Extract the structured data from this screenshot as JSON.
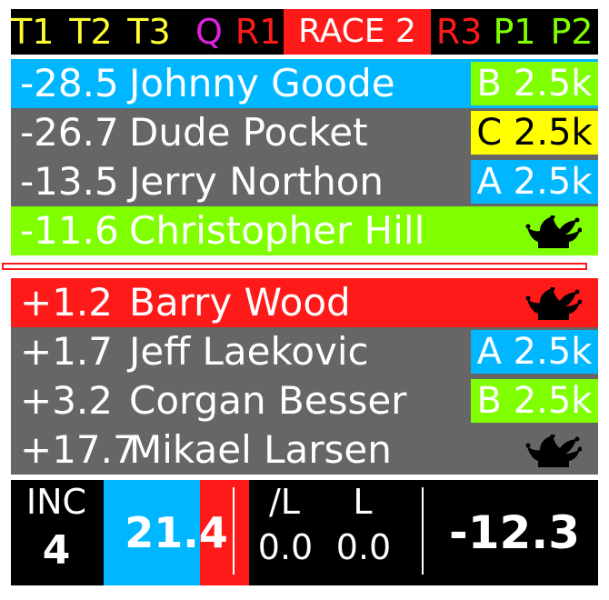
{
  "colors": {
    "yellow": "#ffff33",
    "magenta": "#e020e0",
    "red": "#ff1a1a",
    "green": "#7fff00",
    "blue": "#00b7ff",
    "gray": "#666666",
    "badge_yellow": "#ffff00",
    "black": "#000000",
    "white": "#ffffff"
  },
  "tabs": [
    {
      "label": "T1",
      "color": "#ffff33"
    },
    {
      "label": "T2",
      "color": "#ffff33"
    },
    {
      "label": "T3",
      "color": "#ffff33"
    },
    {
      "label": "Q",
      "color": "#e020e0"
    },
    {
      "label": "R1",
      "color": "#ff1a1a"
    },
    {
      "label": "RACE 2",
      "color": "#ffffff",
      "active": true
    },
    {
      "label": "R3",
      "color": "#ff1a1a"
    },
    {
      "label": "P1",
      "color": "#7fff00"
    },
    {
      "label": "P2",
      "color": "#7fff00"
    }
  ],
  "ahead": [
    {
      "gap": "-28.5",
      "name": "Johnny Goode",
      "row_color": "#00b7ff",
      "badge": "B 2.5k",
      "badge_bg": "#7fff00",
      "badge_fg": "#ffffff"
    },
    {
      "gap": "-26.7",
      "name": "Dude Pocket",
      "row_color": "#666666",
      "badge": "C 2.5k",
      "badge_bg": "#ffff00",
      "badge_fg": "#000000"
    },
    {
      "gap": "-13.5",
      "name": "Jerry Northon",
      "row_color": "#666666",
      "badge": "A 2.5k",
      "badge_bg": "#00b7ff",
      "badge_fg": "#ffffff"
    },
    {
      "gap": "-11.6",
      "name": "Christopher Hill",
      "row_color": "#7fff00",
      "icon": "jester-icon"
    }
  ],
  "behind": [
    {
      "gap": "+1.2",
      "name": "Barry Wood",
      "row_color": "#ff1a1a",
      "icon": "jester-icon"
    },
    {
      "gap": "+1.7",
      "name": "Jeff Laekovic",
      "row_color": "#666666",
      "badge": "A 2.5k",
      "badge_bg": "#00b7ff",
      "badge_fg": "#ffffff"
    },
    {
      "gap": "+3.2",
      "name": "Corgan Besser",
      "row_color": "#666666",
      "badge": "B 2.5k",
      "badge_bg": "#7fff00",
      "badge_fg": "#ffffff"
    },
    {
      "gap": "+17.7",
      "name": "Mikael Larsen",
      "row_color": "#666666",
      "icon": "jester-icon"
    }
  ],
  "footer": {
    "inc_label": "INC",
    "inc_value": "4",
    "gauge_value": "21.4",
    "gauge_red_fraction": 0.34,
    "slash_l_label": "/L",
    "slash_l_value": "0.0",
    "l_label": "L",
    "l_value": "0.0",
    "total": "-12.3"
  }
}
